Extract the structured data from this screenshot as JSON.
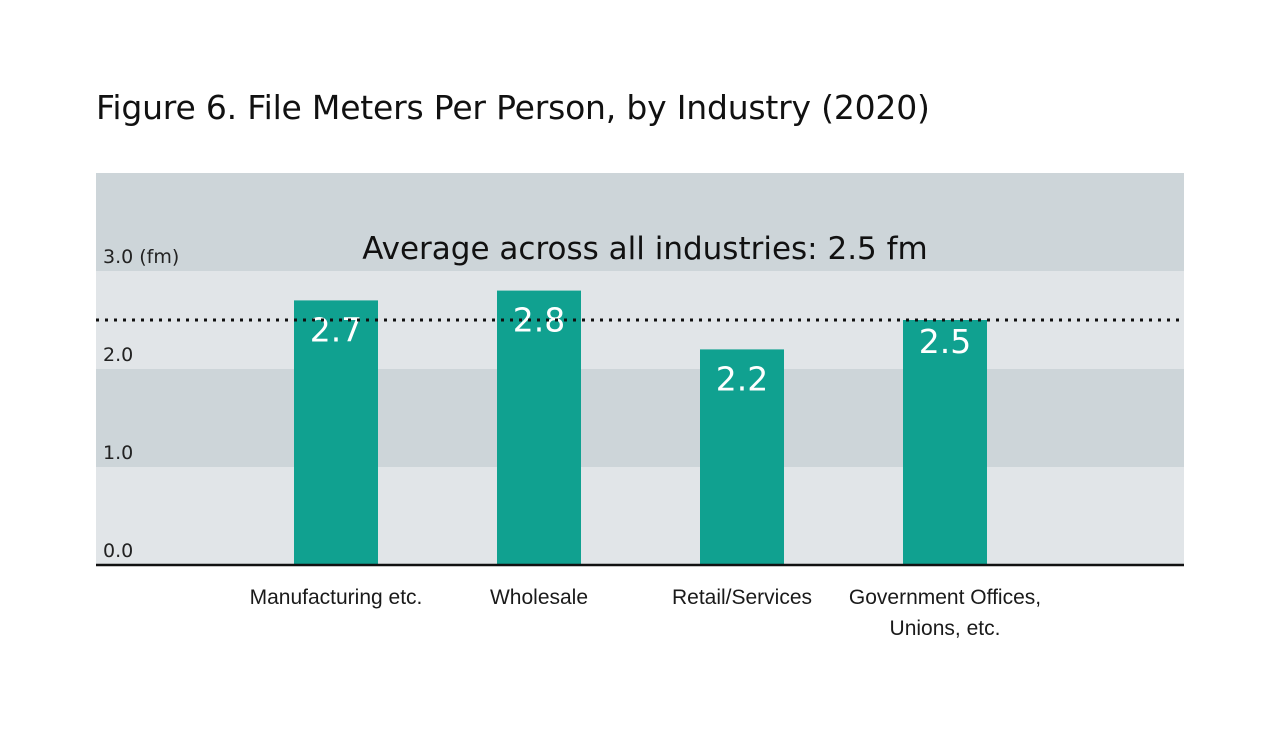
{
  "colors": {
    "bar": "#10a190",
    "band_dark": "#cdd5d9",
    "band_light": "#e1e5e8",
    "axis": "#111111",
    "avg_line": "#111111"
  },
  "chart_data": {
    "type": "bar",
    "title": "Figure 6. File Meters Per Person, by Industry (2020)",
    "categories": [
      [
        "Manufacturing etc."
      ],
      [
        "Wholesale"
      ],
      [
        "Retail/Services"
      ],
      [
        "Government Offices,",
        "Unions, etc."
      ]
    ],
    "values": [
      2.7,
      2.8,
      2.2,
      2.5
    ],
    "data_labels": [
      "2.7",
      "2.8",
      "2.2",
      "2.5"
    ],
    "ylim": [
      0,
      4
    ],
    "y_ticks": [
      0,
      1,
      2,
      3
    ],
    "y_tick_labels": [
      "0.0",
      "1.0",
      "2.0",
      "3.0 (fm)"
    ],
    "reference_line": {
      "value": 2.5,
      "style": "dotted",
      "label": "Average across all industries: 2.5 fm"
    },
    "grid": "alternating horizontal bands",
    "legend": "none"
  }
}
